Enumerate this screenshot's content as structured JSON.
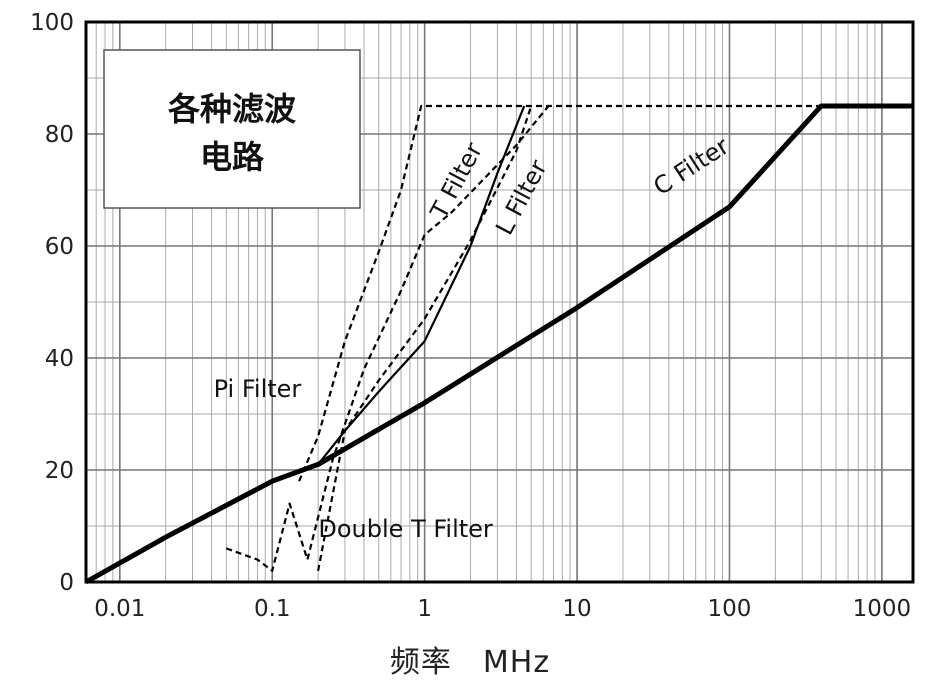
{
  "chart_data": {
    "type": "line",
    "title_box": [
      "各种滤波",
      "电路"
    ],
    "xlabel": "频率　MHz",
    "ylabel": "",
    "x_scale": "log",
    "xlim": [
      0.006,
      1600
    ],
    "ylim": [
      0,
      100
    ],
    "x_ticks": [
      0.01,
      0.1,
      1,
      10,
      100,
      1000
    ],
    "x_tick_labels": [
      "0.01",
      "0.1",
      "1",
      "10",
      "100",
      "1000"
    ],
    "y_ticks": [
      0,
      20,
      40,
      60,
      80,
      100
    ],
    "y_tick_labels": [
      "0",
      "20",
      "40",
      "60",
      "80",
      "100"
    ],
    "grid": true,
    "series": [
      {
        "name": "C Filter",
        "style": "solid-thick",
        "x": [
          0.006,
          0.02,
          0.1,
          0.2,
          1,
          10,
          100,
          400,
          1600
        ],
        "y": [
          0,
          8,
          18,
          21,
          32,
          49,
          67,
          85,
          85
        ]
      },
      {
        "name": "L Filter",
        "style": "solid-thin",
        "x": [
          0.2,
          0.3,
          0.5,
          1,
          2,
          3,
          4.5
        ],
        "y": [
          21,
          27,
          34,
          43,
          60,
          73,
          85
        ]
      },
      {
        "name": "T Filter",
        "style": "dashed",
        "x": [
          0.2,
          0.3,
          0.5,
          1,
          2,
          4,
          5
        ],
        "y": [
          2,
          27,
          36,
          47,
          61,
          77,
          85
        ]
      },
      {
        "name": "Pi Filter",
        "style": "dashed",
        "x": [
          0.15,
          0.2,
          0.3,
          0.5,
          0.7,
          0.95,
          1.2,
          1600
        ],
        "y": [
          18,
          26,
          43,
          59,
          70,
          85,
          85,
          85
        ]
      },
      {
        "name": "Double T Filter",
        "style": "dashed",
        "x": [
          0.05,
          0.08,
          0.1,
          0.13,
          0.17,
          0.25,
          0.4,
          0.7,
          1,
          1.5,
          4,
          6.5
        ],
        "y": [
          6,
          4,
          2,
          14,
          4,
          22,
          38,
          52,
          62,
          66,
          78,
          85
        ]
      }
    ],
    "annotations": [
      {
        "text": "Pi Filter",
        "x": 0.08,
        "y": 33
      },
      {
        "text": "Double T Filter",
        "x": 0.75,
        "y": 8
      },
      {
        "text": "T Filter",
        "x": 1.8,
        "y": 71
      },
      {
        "text": "L Filter",
        "x": 4.8,
        "y": 68
      },
      {
        "text": "C Filter",
        "x": 60,
        "y": 73
      }
    ]
  }
}
